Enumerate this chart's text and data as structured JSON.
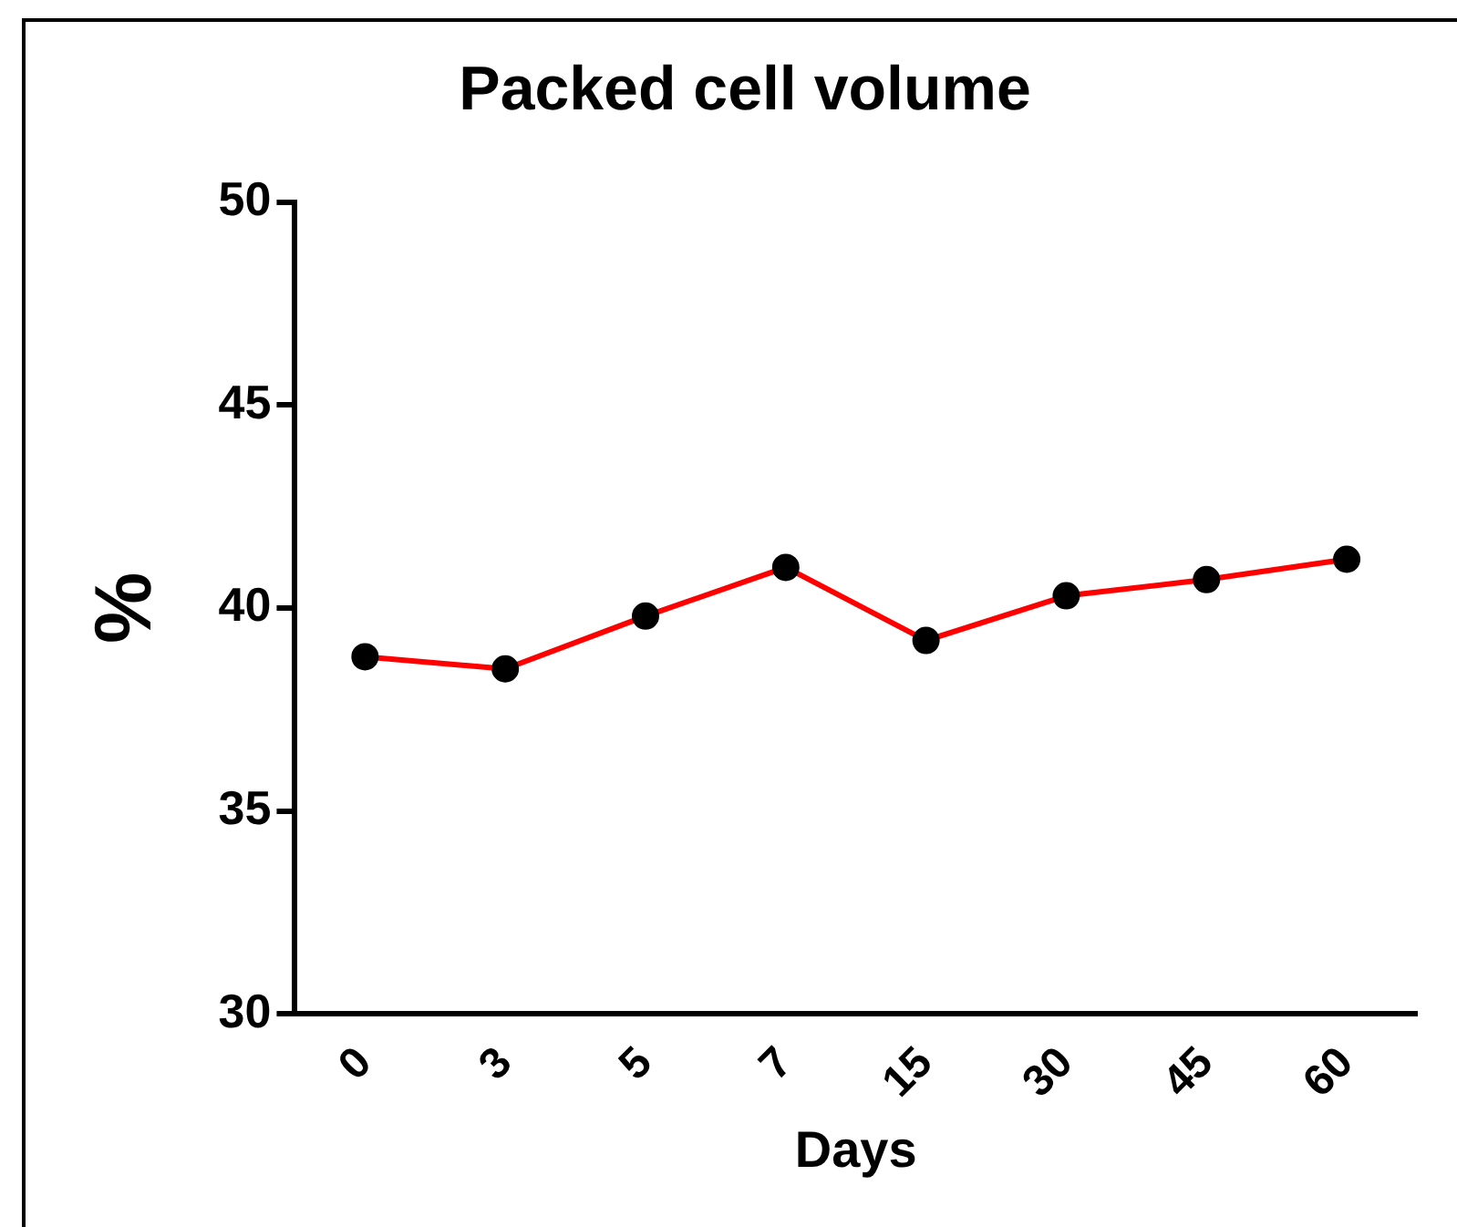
{
  "chart_data": {
    "type": "line",
    "title": "Packed cell volume",
    "xlabel": "Days",
    "ylabel": "%",
    "categories": [
      "0",
      "3",
      "5",
      "7",
      "15",
      "30",
      "45",
      "60"
    ],
    "series": [
      {
        "color": "#ff0000",
        "values": [
          38.8,
          38.5,
          39.8,
          41.0,
          39.2,
          40.3,
          40.7,
          41.2
        ]
      }
    ],
    "ylim": [
      30,
      50
    ],
    "yticks": [
      30,
      35,
      40,
      45,
      50
    ],
    "grid": false,
    "legend": false,
    "marker": "circle",
    "line_style": "solid"
  }
}
